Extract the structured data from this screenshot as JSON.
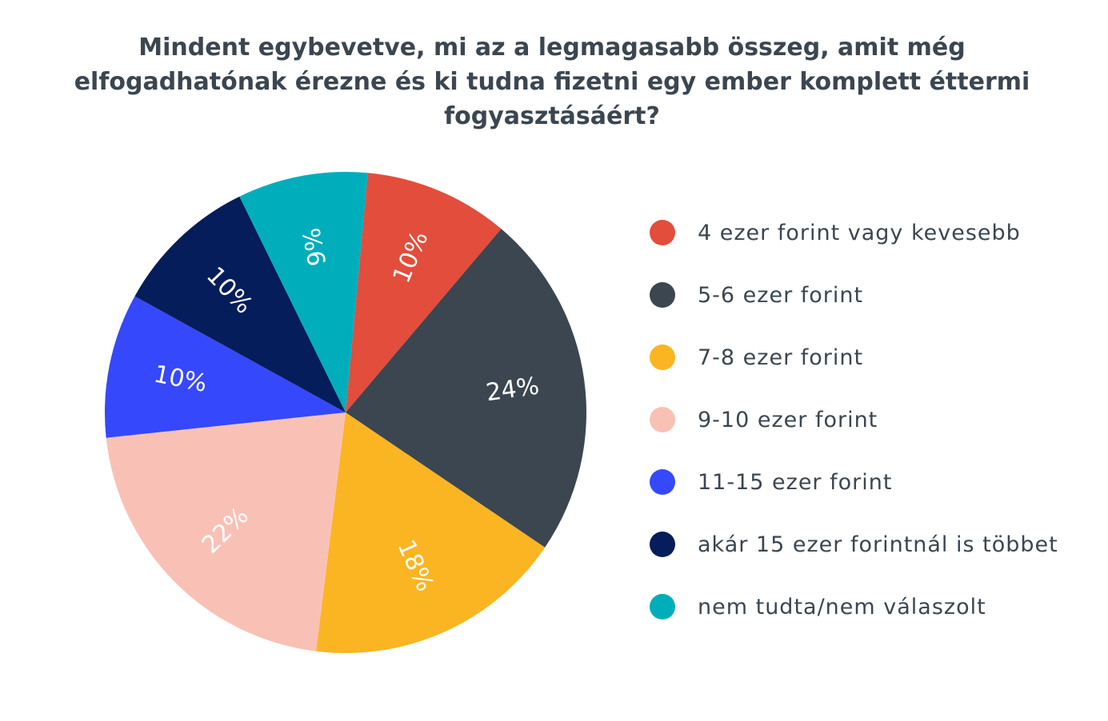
{
  "chart_data": {
    "type": "pie",
    "title": "Mindent egybevetve, mi az a legmagasabb összeg, amit még elfogadhatónak érezne és ki tudna fizetni egy ember komplett éttermi fogyasztásáért?",
    "categories": [
      "4 ezer forint vagy kevesebb",
      "5-6 ezer forint",
      "7-8 ezer forint",
      "9-10 ezer forint",
      "11-15 ezer forint",
      "akár 15 ezer forintnál is többet",
      "nem tudta/nem válaszolt"
    ],
    "values": [
      10,
      24,
      18,
      22,
      10,
      10,
      9
    ],
    "labels": [
      "10%",
      "24%",
      "18%",
      "22%",
      "10%",
      "10%",
      "9%"
    ],
    "colors": [
      "#E34D3B",
      "#3B4650",
      "#FBB522",
      "#F9C1B5",
      "#3648FB",
      "#051D5A",
      "#00AEBB"
    ],
    "legend": "right"
  }
}
